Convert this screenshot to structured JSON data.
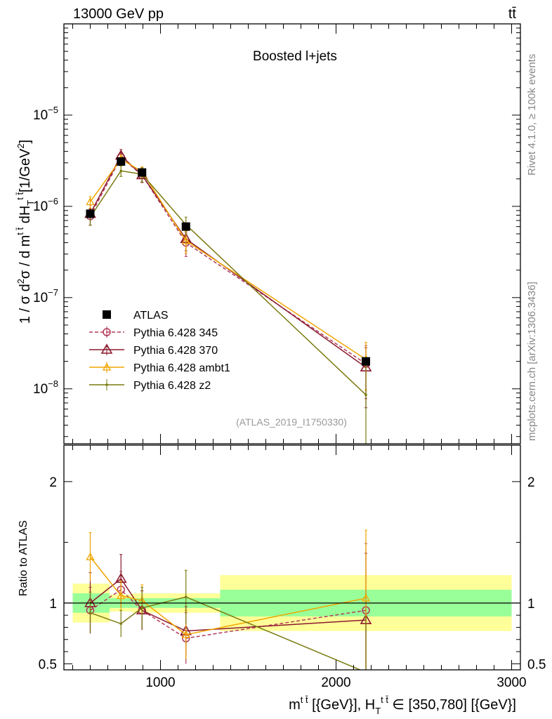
{
  "header": {
    "energy": "13000 GeV pp",
    "process": "tt̄"
  },
  "side_text": {
    "rivet": "Rivet 4.1.0, ≥ 100k events",
    "mcplots": "mcplots.cern.ch [arXiv:1306.3436]"
  },
  "colors": {
    "atlas": "#000000",
    "p345": "#b03a5a",
    "p370": "#8b1a2e",
    "ambt1": "#f0a500",
    "z2": "#7a7a10",
    "band_yellow": "#ffff99",
    "band_green": "#99ff99"
  },
  "chart_data": {
    "type": "line",
    "title": "Boosted l+jets",
    "analysis_tag": "(ATLAS_2019_I1750330)",
    "ylabel": "1 / σ d²σ / d m^{t̄t} dH_T^{t̄t} [1/GeV²]",
    "ratio_ylabel": "Ratio to ATLAS",
    "xlabel": "m^{t̄t} [{GeV}], H_T^{t̄t} ∈ [350,780] [{GeV}]",
    "xlim": [
      450,
      3050
    ],
    "ylim": [
      2.5e-09,
      0.0001
    ],
    "ratio_ylim": [
      0.45,
      2.3
    ],
    "x_ticks": [
      1000,
      2000,
      3000
    ],
    "y_ticks": [
      "10^{-8}",
      "10^{-7}",
      "10^{-6}",
      "10^{-5}"
    ],
    "ratio_ticks": [
      "0.5",
      "1",
      "2"
    ],
    "bins": [
      [
        500,
        710
      ],
      [
        710,
        840
      ],
      [
        840,
        950
      ],
      [
        950,
        1340
      ],
      [
        1340,
        3000
      ]
    ],
    "legend": [
      {
        "name": "ATLAS",
        "key": "atlas",
        "marker": "square",
        "dashed": false
      },
      {
        "name": "Pythia 6.428 345",
        "key": "p345",
        "marker": "circle",
        "dashed": true
      },
      {
        "name": "Pythia 6.428 370",
        "key": "p370",
        "marker": "triangle",
        "dashed": false
      },
      {
        "name": "Pythia 6.428 ambt1",
        "key": "ambt1",
        "marker": "triangle-small",
        "dashed": false
      },
      {
        "name": "Pythia 6.428 z2",
        "key": "z2",
        "marker": "dot",
        "dashed": false
      }
    ],
    "data": {
      "x": [
        600,
        775,
        895,
        1145,
        2170
      ],
      "y": [
        8.3e-07,
        3.1e-06,
        2.35e-06,
        6e-07,
        2e-08
      ],
      "band_yellow": [
        0.16,
        0.07,
        0.08,
        0.08,
        0.23
      ],
      "band_green": [
        0.08,
        0.04,
        0.04,
        0.04,
        0.11
      ]
    },
    "series": [
      {
        "key": "p345",
        "name": "Pythia 6.428 345",
        "y": [
          7.8e-07,
          3.45e-06,
          2.2e-06,
          4e-07,
          1.88e-08
        ],
        "ratio": [
          0.94,
          1.11,
          0.94,
          0.71,
          0.94
        ],
        "ratio_err": [
          0.19,
          0.15,
          0.16,
          0.21,
          0.55
        ]
      },
      {
        "key": "p370",
        "name": "Pythia 6.428 370",
        "y": [
          8.3e-07,
          3.6e-06,
          2.2e-06,
          4.4e-07,
          1.72e-08
        ],
        "ratio": [
          1.0,
          1.2,
          0.94,
          0.77,
          0.86
        ],
        "ratio_err": [
          0.25,
          0.2,
          0.16,
          0.2,
          0.55
        ]
      },
      {
        "key": "ambt1",
        "name": "Pythia 6.428 ambt1",
        "y": [
          1.12e-06,
          3.3e-06,
          2.4e-06,
          4.2e-07,
          2.1e-08
        ],
        "ratio": [
          1.38,
          1.06,
          1.02,
          0.74,
          1.04
        ],
        "ratio_err": [
          0.2,
          0.12,
          0.13,
          0.2,
          0.56
        ]
      },
      {
        "key": "z2",
        "name": "Pythia 6.428 z2",
        "y": [
          7.6e-07,
          2.45e-06,
          2.25e-06,
          6.3e-07,
          8.6e-09
        ],
        "ratio": [
          0.92,
          0.83,
          0.96,
          1.05,
          0.43
        ],
        "ratio_err": [
          0.17,
          0.11,
          0.17,
          0.22,
          0.45
        ]
      }
    ]
  }
}
